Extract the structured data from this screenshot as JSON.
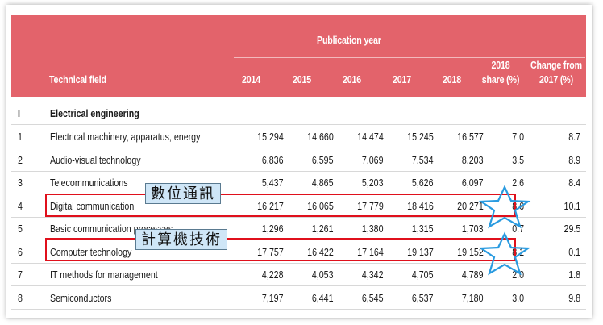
{
  "table": {
    "header": {
      "publication_year": "Publication year",
      "technical_field": "Technical field",
      "years": [
        "2014",
        "2015",
        "2016",
        "2017",
        "2018"
      ],
      "share": [
        "2018",
        "share (%)"
      ],
      "change": [
        "Change from",
        "2017 (%)"
      ]
    },
    "section": {
      "number": "I",
      "title": "Electrical engineering"
    },
    "rows": [
      {
        "no": "1",
        "field": "Electrical machinery, apparatus, energy",
        "v2014": "15,294",
        "v2015": "14,660",
        "v2016": "14,474",
        "v2017": "15,245",
        "v2018": "16,577",
        "share": "7.0",
        "change": "8.7"
      },
      {
        "no": "2",
        "field": "Audio-visual technology",
        "v2014": "6,836",
        "v2015": "6,595",
        "v2016": "7,069",
        "v2017": "7,534",
        "v2018": "8,203",
        "share": "3.5",
        "change": "8.9"
      },
      {
        "no": "3",
        "field": "Telecommunications",
        "v2014": "5,437",
        "v2015": "4,865",
        "v2016": "5,203",
        "v2017": "5,626",
        "v2018": "6,097",
        "share": "2.6",
        "change": "8.4"
      },
      {
        "no": "4",
        "field": "Digital communication",
        "v2014": "16,217",
        "v2015": "16,065",
        "v2016": "17,779",
        "v2017": "18,416",
        "v2018": "20,271",
        "share": "8.6",
        "change": "10.1"
      },
      {
        "no": "5",
        "field": "Basic communication processes",
        "v2014": "1,296",
        "v2015": "1,261",
        "v2016": "1,380",
        "v2017": "1,315",
        "v2018": "1,703",
        "share": "0.7",
        "change": "29.5"
      },
      {
        "no": "6",
        "field": "Computer technology",
        "v2014": "17,757",
        "v2015": "16,422",
        "v2016": "17,164",
        "v2017": "19,137",
        "v2018": "19,152",
        "share": "8.1",
        "change": "0.1"
      },
      {
        "no": "7",
        "field": "IT methods for management",
        "v2014": "4,228",
        "v2015": "4,053",
        "v2016": "4,342",
        "v2017": "4,705",
        "v2018": "4,789",
        "share": "2.0",
        "change": "1.8"
      },
      {
        "no": "8",
        "field": "Semiconductors",
        "v2014": "7,197",
        "v2015": "6,441",
        "v2016": "6,545",
        "v2017": "6,537",
        "v2018": "7,180",
        "share": "3.0",
        "change": "9.8"
      }
    ]
  },
  "annotations": {
    "callout_digital": "數位通訊",
    "callout_computer": "計算機技術"
  },
  "colors": {
    "header_bg": "#e3636b",
    "highlight_border": "#e0101c",
    "callout_bg": "#cfe6f7",
    "star_stroke": "#2a9be0"
  }
}
